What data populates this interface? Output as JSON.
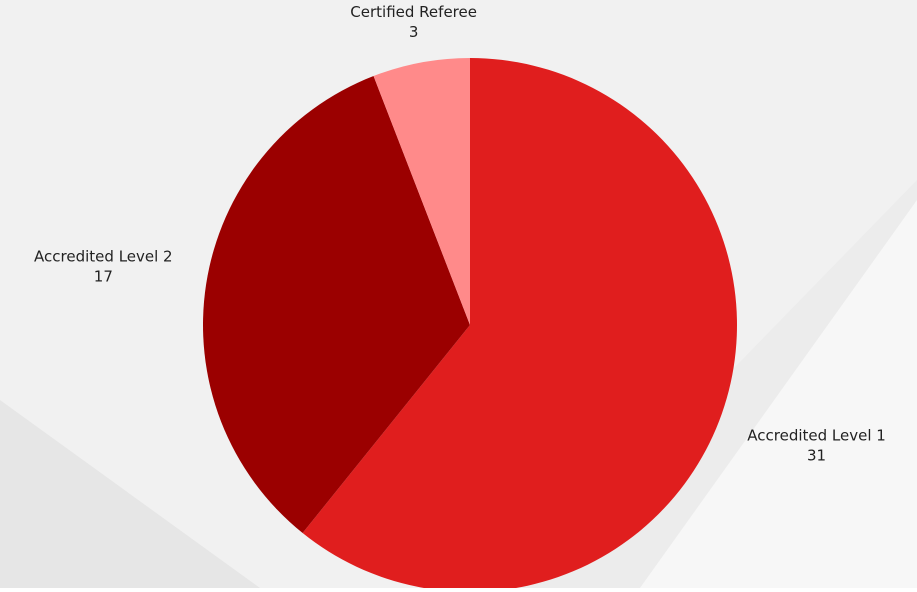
{
  "chart_data": {
    "type": "pie",
    "categories": [
      "Accredited Level 1",
      "Accredited Level 2",
      "Certified Referee"
    ],
    "values": [
      31,
      17,
      3
    ],
    "colors": [
      "#e01e1e",
      "#9b0000",
      "#ff8a8a"
    ]
  }
}
